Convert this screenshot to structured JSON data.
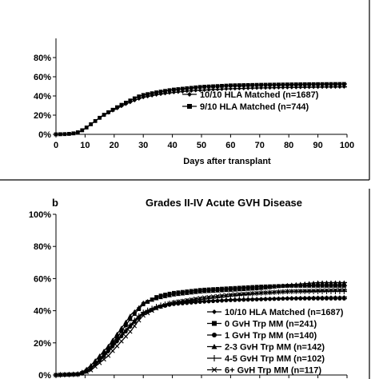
{
  "panel_b": {
    "letter": "b"
  },
  "chart_data": [
    {
      "type": "line",
      "id": "a",
      "title": "",
      "xlabel": "Days after transplant",
      "ylabel": "",
      "xlim": [
        0,
        100
      ],
      "ylim": [
        0,
        100
      ],
      "x_ticks": [
        "0",
        "10",
        "20",
        "30",
        "40",
        "50",
        "60",
        "70",
        "80",
        "90",
        "100"
      ],
      "y_ticks": [
        "0%",
        "20%",
        "40%",
        "60%",
        "80%"
      ],
      "legend_position": "lower-right",
      "series": [
        {
          "name": "10/10 HLA Matched (n=1687)",
          "marker": "diamond",
          "x": [
            0,
            4,
            6,
            8,
            10,
            12,
            14,
            16,
            18,
            20,
            22,
            24,
            26,
            28,
            30,
            35,
            40,
            45,
            50,
            55,
            60,
            70,
            80,
            90,
            100
          ],
          "y": [
            0,
            0.3,
            1,
            2.5,
            6,
            10.5,
            15,
            19,
            22.5,
            25.5,
            28.5,
            31.5,
            34,
            36.5,
            38.5,
            41.5,
            43.5,
            45,
            46,
            46.8,
            47.5,
            48.3,
            48.8,
            49.2,
            49.5
          ]
        },
        {
          "name": "9/10 HLA Matched (n=744)",
          "marker": "square",
          "x": [
            0,
            4,
            6,
            8,
            10,
            12,
            14,
            16,
            18,
            20,
            22,
            24,
            26,
            28,
            30,
            35,
            40,
            45,
            50,
            55,
            60,
            70,
            80,
            90,
            100
          ],
          "y": [
            0,
            0.3,
            1,
            2.5,
            6,
            10.5,
            15,
            19.5,
            23,
            26.5,
            30,
            33,
            36,
            39,
            41,
            44,
            46.5,
            48,
            49.5,
            50.2,
            51,
            51.6,
            52,
            52.3,
            52.5
          ]
        }
      ]
    },
    {
      "type": "line",
      "id": "b",
      "title": "Grades II-IV Acute GVH Disease",
      "xlabel": "",
      "ylabel": "",
      "xlim": [
        0,
        100
      ],
      "ylim": [
        0,
        100
      ],
      "y_ticks": [
        "0%",
        "20%",
        "40%",
        "60%",
        "80%",
        "100%"
      ],
      "legend_position": "lower-right",
      "series": [
        {
          "name": "10/10 HLA Matched (n=1687)",
          "marker": "diamond",
          "x": [
            0,
            8,
            10,
            12,
            14,
            16,
            18,
            20,
            22,
            24,
            26,
            28,
            30,
            35,
            40,
            50,
            60,
            70,
            80,
            90,
            100
          ],
          "y": [
            0,
            0.5,
            2,
            4,
            7,
            10.5,
            14.5,
            18.5,
            23,
            27.5,
            32,
            35.5,
            38.5,
            42.5,
            44.5,
            46,
            47,
            47.5,
            48,
            48.3,
            48.5
          ]
        },
        {
          "name": "0 GvH Trp MM (n=241)",
          "marker": "square",
          "x": [
            0,
            8,
            10,
            12,
            14,
            16,
            18,
            20,
            22,
            24,
            26,
            28,
            30,
            35,
            40,
            50,
            60,
            70,
            80,
            90,
            100
          ],
          "y": [
            0,
            0.5,
            2,
            4.5,
            8,
            12,
            16,
            21,
            26,
            31,
            36,
            40,
            44,
            49,
            51,
            53,
            54,
            55,
            55.5,
            55.5,
            55.5
          ]
        },
        {
          "name": "1 GvH Trp MM (n=140)",
          "marker": "circle",
          "x": [
            0,
            8,
            10,
            12,
            14,
            16,
            18,
            20,
            22,
            24,
            26,
            28,
            30,
            35,
            40,
            50,
            60,
            70,
            80,
            90,
            100
          ],
          "y": [
            0,
            0.5,
            2,
            4,
            7.5,
            11,
            15,
            19,
            23,
            27,
            31,
            35,
            38,
            42,
            44,
            45.5,
            46.5,
            47,
            47.5,
            47.5,
            47.5
          ]
        },
        {
          "name": "2-3 GvH Trp MM (n=142)",
          "marker": "triangle",
          "x": [
            0,
            8,
            10,
            12,
            14,
            16,
            18,
            20,
            22,
            24,
            26,
            28,
            30,
            35,
            40,
            50,
            60,
            70,
            80,
            90,
            100
          ],
          "y": [
            0,
            1,
            3,
            6,
            10,
            14,
            18,
            23,
            28,
            33,
            38,
            41,
            45,
            48,
            50,
            52,
            53,
            54,
            56,
            57.5,
            57.5
          ]
        },
        {
          "name": "4-5 GvH Trp MM (n=102)",
          "marker": "plus",
          "x": [
            0,
            8,
            10,
            12,
            14,
            16,
            18,
            20,
            22,
            24,
            26,
            28,
            30,
            35,
            40,
            50,
            60,
            70,
            80,
            90,
            100
          ],
          "y": [
            0,
            0.5,
            2,
            4,
            8,
            12,
            16,
            20,
            24,
            28,
            32,
            36,
            39,
            43,
            45,
            47,
            49,
            51,
            52,
            52,
            52
          ]
        },
        {
          "name": "6+ GvH Trp MM (n=117)",
          "marker": "x",
          "x": [
            0,
            8,
            10,
            12,
            14,
            16,
            18,
            20,
            22,
            24,
            26,
            28,
            30,
            35,
            40,
            50,
            60,
            70,
            80,
            90,
            100
          ],
          "y": [
            0,
            0.5,
            1.5,
            3,
            6,
            9,
            12,
            16,
            20,
            24,
            28,
            33,
            37,
            42,
            45,
            48,
            50,
            51,
            52,
            52.5,
            53
          ]
        }
      ]
    }
  ]
}
